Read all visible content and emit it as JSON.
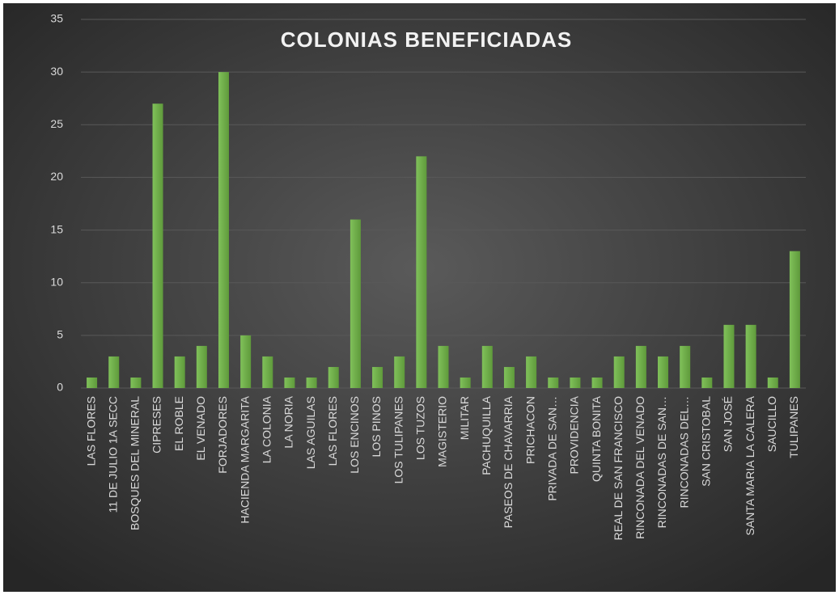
{
  "chart_data": {
    "type": "bar",
    "title": "COLONIAS BENEFICIADAS",
    "categories": [
      "LAS FLORES",
      "11 DE JULIO 1A SECC",
      "BOSQUES DEL MINERAL",
      "CIPRESES",
      "EL ROBLE",
      "EL VENADO",
      "FORJADORES",
      "HACIENDA MARGARITA",
      "LA COLONIA",
      "LA NORIA",
      "LAS AGUILAS",
      "LAS FLORES",
      "LOS ENCINOS",
      "LOS PINOS",
      "LOS TULIPANES",
      "LOS TUZOS",
      "MAGISTERIO",
      "MILITAR",
      "PACHUQUILLA",
      "PASEOS DE CHAVARRIA",
      "PRICHACON",
      "PRIVADA DE SAN…",
      "PROVIDENCIA",
      "QUINTA BONITA",
      "REAL DE SAN FRANCISCO",
      "RINCONADA DEL VENADO",
      "RINCONADAS DE SAN…",
      "RINCONADAS DEL…",
      "SAN CRISTOBAL",
      "SAN JOSÉ",
      "SANTA MARIA LA CALERA",
      "SAUCILLO",
      "TULIPANES"
    ],
    "values": [
      1,
      3,
      1,
      27,
      3,
      4,
      30,
      5,
      3,
      1,
      1,
      2,
      16,
      2,
      3,
      22,
      4,
      1,
      4,
      2,
      3,
      1,
      1,
      1,
      3,
      4,
      3,
      4,
      1,
      6,
      6,
      1,
      13
    ],
    "color": "#70ad47",
    "ylim": [
      0,
      35
    ],
    "yticks": [
      0,
      5,
      10,
      15,
      20,
      25,
      30,
      35
    ],
    "grid": true
  }
}
